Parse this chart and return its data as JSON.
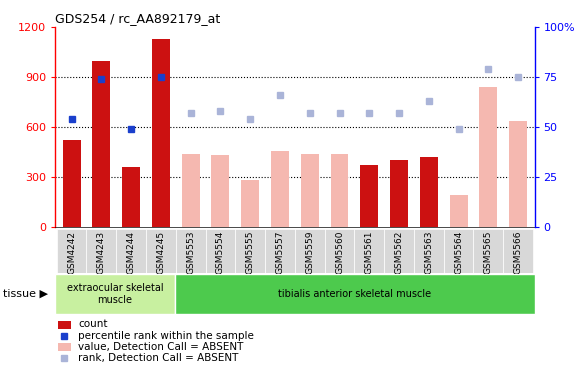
{
  "title": "GDS254 / rc_AA892179_at",
  "categories": [
    "GSM4242",
    "GSM4243",
    "GSM4244",
    "GSM4245",
    "GSM5553",
    "GSM5554",
    "GSM5555",
    "GSM5557",
    "GSM5559",
    "GSM5560",
    "GSM5561",
    "GSM5562",
    "GSM5563",
    "GSM5564",
    "GSM5565",
    "GSM5566"
  ],
  "bar_present_values": [
    520,
    1000,
    360,
    1130,
    null,
    null,
    null,
    null,
    null,
    null,
    370,
    400,
    420,
    null,
    null,
    null
  ],
  "bar_absent_values": [
    null,
    null,
    null,
    null,
    440,
    430,
    280,
    455,
    440,
    440,
    null,
    null,
    null,
    190,
    840,
    640
  ],
  "dot_present_values": [
    54,
    74,
    49,
    75,
    null,
    null,
    null,
    null,
    null,
    null,
    null,
    null,
    null,
    null,
    null,
    null
  ],
  "dot_absent_values": [
    null,
    null,
    null,
    null,
    57,
    58,
    54,
    66,
    57,
    57,
    57,
    57,
    63,
    49,
    79,
    75
  ],
  "bar_color_present": "#cc1111",
  "bar_color_absent": "#f5b8b0",
  "dot_color_present": "#1a3fcc",
  "dot_color_absent": "#aab4d8",
  "ylim_left": [
    0,
    1200
  ],
  "ylim_right": [
    0,
    100
  ],
  "yticks_left": [
    0,
    300,
    600,
    900,
    1200
  ],
  "yticks_right": [
    0,
    25,
    50,
    75,
    100
  ],
  "tissue_groups": [
    {
      "label": "extraocular skeletal\nmuscle",
      "start": 0,
      "end": 4,
      "color": "#c8f0a0"
    },
    {
      "label": "tibialis anterior skeletal muscle",
      "start": 4,
      "end": 16,
      "color": "#4dca4d"
    }
  ],
  "tissue_label": "tissue",
  "legend_items": [
    {
      "label": "count",
      "color": "#cc1111",
      "type": "bar"
    },
    {
      "label": "percentile rank within the sample",
      "color": "#1a3fcc",
      "type": "dot"
    },
    {
      "label": "value, Detection Call = ABSENT",
      "color": "#f5b8b0",
      "type": "bar"
    },
    {
      "label": "rank, Detection Call = ABSENT",
      "color": "#aab4d8",
      "type": "dot"
    }
  ],
  "plot_bg_color": "#ffffff",
  "xticklabel_bg": "#d8d8d8"
}
